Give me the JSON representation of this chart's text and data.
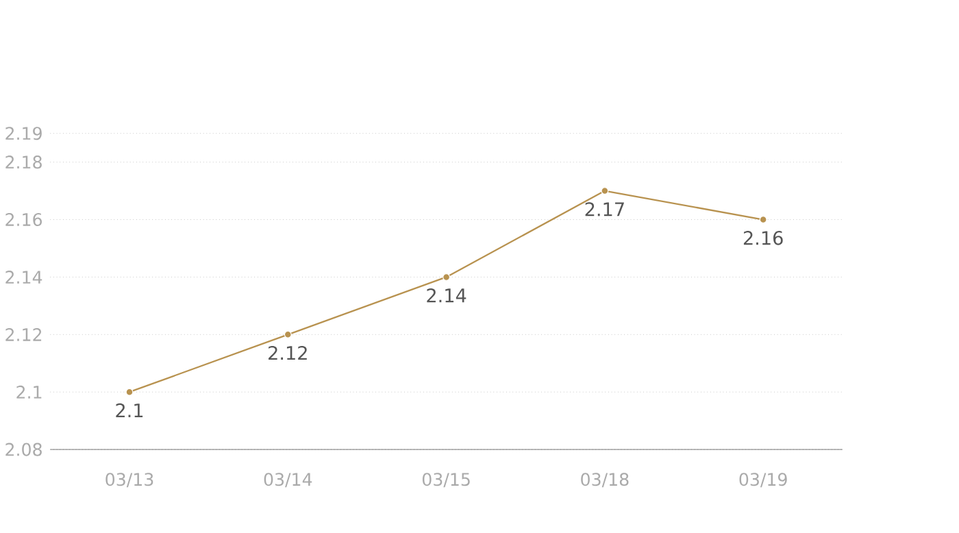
{
  "chart_data": {
    "type": "line",
    "categories": [
      "03/13",
      "03/14",
      "03/15",
      "03/18",
      "03/19"
    ],
    "values": [
      2.1,
      2.12,
      2.14,
      2.17,
      2.16
    ],
    "color": "#b8924f",
    "ylim": [
      2.08,
      2.19
    ],
    "yticks": [
      2.08,
      2.1,
      2.12,
      2.14,
      2.16,
      2.18,
      2.19
    ],
    "grid": "y",
    "marker": "circle",
    "data_labels": true
  }
}
